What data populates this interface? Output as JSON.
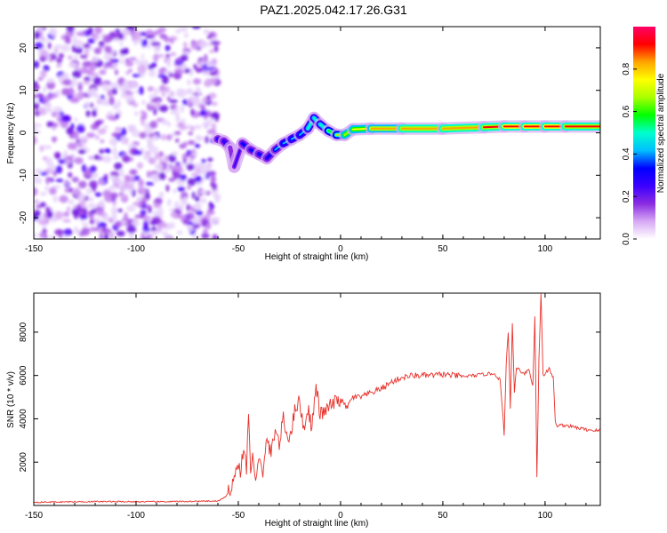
{
  "title": "PAZ1.2025.042.17.26.G31",
  "chart_data": [
    {
      "type": "heatmap",
      "xlabel": "Height of straight line (km)",
      "ylabel": "Frequency (Hz)",
      "xlim": [
        -150,
        127
      ],
      "ylim": [
        -25,
        25
      ],
      "xticks": [
        -150,
        -100,
        -50,
        0,
        50,
        100
      ],
      "yticks": [
        -20,
        -10,
        0,
        10,
        20
      ],
      "colorbar": {
        "label": "Normalized spectral amplitude",
        "range": [
          0,
          1
        ],
        "ticks": [
          "0.0",
          "0.2",
          "0.4",
          "0.6",
          "0.8"
        ],
        "colors": [
          "#ffffff",
          "#d7a8f5",
          "#8a2be2",
          "#3b00ff",
          "#0000ff",
          "#00bfff",
          "#00ffcc",
          "#00ff00",
          "#aaff00",
          "#ffff00",
          "#ffa500",
          "#ff0000",
          "#ff0066"
        ]
      },
      "noise_region_x": [
        -150,
        -60
      ],
      "tone_track": [
        {
          "x": -60,
          "y": -1.5,
          "amp": 0.25
        },
        {
          "x": -57,
          "y": -2.0,
          "amp": 0.3
        },
        {
          "x": -54,
          "y": -3.5,
          "amp": 0.25
        },
        {
          "x": -52,
          "y": -8.0,
          "amp": 0.15
        },
        {
          "x": -48,
          "y": -2.5,
          "amp": 0.3
        },
        {
          "x": -44,
          "y": -4.0,
          "amp": 0.3
        },
        {
          "x": -40,
          "y": -5.0,
          "amp": 0.35
        },
        {
          "x": -36,
          "y": -6.0,
          "amp": 0.35
        },
        {
          "x": -32,
          "y": -4.0,
          "amp": 0.35
        },
        {
          "x": -28,
          "y": -2.5,
          "amp": 0.4
        },
        {
          "x": -24,
          "y": -1.5,
          "amp": 0.45
        },
        {
          "x": -20,
          "y": -0.5,
          "amp": 0.45
        },
        {
          "x": -16,
          "y": 1.0,
          "amp": 0.45
        },
        {
          "x": -13,
          "y": 3.5,
          "amp": 0.5
        },
        {
          "x": -10,
          "y": 2.0,
          "amp": 0.5
        },
        {
          "x": -6,
          "y": 0.5,
          "amp": 0.55
        },
        {
          "x": -2,
          "y": -0.5,
          "amp": 0.6
        },
        {
          "x": 2,
          "y": -0.5,
          "amp": 0.65
        },
        {
          "x": 6,
          "y": 0.8,
          "amp": 0.75
        },
        {
          "x": 15,
          "y": 1.0,
          "amp": 0.8
        },
        {
          "x": 30,
          "y": 1.0,
          "amp": 0.85
        },
        {
          "x": 50,
          "y": 1.0,
          "amp": 0.85
        },
        {
          "x": 70,
          "y": 1.3,
          "amp": 0.85
        },
        {
          "x": 80,
          "y": 1.5,
          "amp": 0.9
        },
        {
          "x": 90,
          "y": 1.5,
          "amp": 0.9
        },
        {
          "x": 100,
          "y": 1.5,
          "amp": 0.9
        },
        {
          "x": 110,
          "y": 1.5,
          "amp": 0.9
        },
        {
          "x": 127,
          "y": 1.5,
          "amp": 0.85
        }
      ]
    },
    {
      "type": "line",
      "xlabel": "Height of straight line (km)",
      "ylabel": "SNR (10 * v/v)",
      "xlim": [
        -150,
        127
      ],
      "ylim": [
        0,
        9800
      ],
      "xticks": [
        -150,
        -100,
        -50,
        0,
        50,
        100
      ],
      "yticks": [
        2000,
        4000,
        6000,
        8000
      ],
      "series": [
        {
          "color": "#e8302a",
          "x": [
            -150,
            -120,
            -90,
            -60,
            -56,
            -54,
            -52,
            -50,
            -49,
            -47,
            -46,
            -45,
            -44,
            -43,
            -42,
            -41,
            -40,
            -38,
            -36,
            -34,
            -32,
            -30,
            -28,
            -26,
            -24,
            -22,
            -20,
            -18,
            -16,
            -14,
            -12,
            -10,
            -8,
            -5,
            -2,
            0,
            3,
            6,
            10,
            15,
            20,
            25,
            30,
            35,
            40,
            45,
            50,
            55,
            60,
            65,
            70,
            75,
            78,
            80,
            81,
            82,
            83,
            84,
            85,
            86,
            88,
            90,
            92,
            94,
            95,
            96,
            97,
            98,
            99,
            100,
            102,
            104,
            105,
            106,
            110,
            115,
            120,
            127
          ],
          "y": [
            150,
            180,
            170,
            200,
            400,
            800,
            1300,
            1900,
            1600,
            2700,
            1400,
            4500,
            1500,
            2200,
            1200,
            1600,
            2400,
            1200,
            3200,
            2300,
            3600,
            2800,
            4000,
            3100,
            3500,
            4600,
            4800,
            3500,
            4500,
            3600,
            5500,
            4200,
            4300,
            4600,
            4800,
            4900,
            4500,
            5000,
            5000,
            5200,
            5400,
            5700,
            5900,
            6000,
            6000,
            6000,
            6050,
            6000,
            5950,
            6000,
            6050,
            6100,
            5800,
            3300,
            6600,
            8000,
            4500,
            8400,
            5200,
            6400,
            6200,
            6100,
            6300,
            5500,
            8700,
            1300,
            6800,
            9800,
            6000,
            6100,
            6300,
            5900,
            3800,
            3700,
            3700,
            3600,
            3500,
            3450
          ]
        }
      ]
    }
  ]
}
